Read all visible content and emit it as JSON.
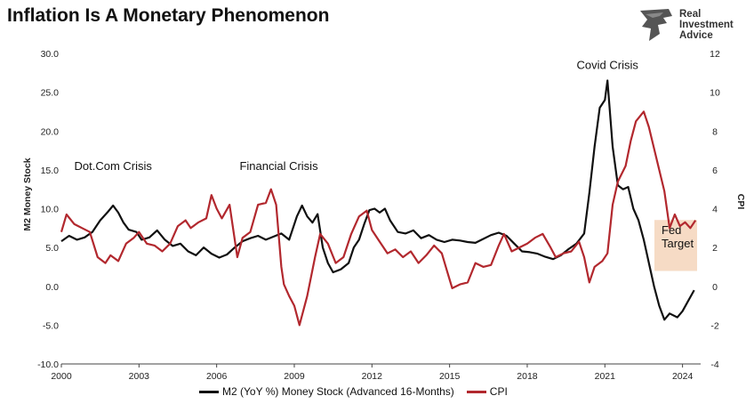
{
  "chart_data": {
    "type": "line",
    "title": "Inflation Is A Monetary Phenomenon",
    "ylabel_left": "M2 Money Stock",
    "ylabel_right": "CPI",
    "ylim_left": [
      -10,
      30
    ],
    "ylim_right": [
      -4,
      12
    ],
    "xlim": [
      2000,
      2024.7
    ],
    "x_ticks": [
      "2000",
      "2003",
      "2006",
      "2009",
      "2012",
      "2015",
      "2018",
      "2021",
      "2024"
    ],
    "y_left_ticks": [
      "30.0",
      "25.0",
      "20.0",
      "15.0",
      "10.0",
      "5.0",
      "0.0",
      "-5.0",
      "-10.0"
    ],
    "y_right_ticks": [
      "12",
      "10",
      "8",
      "6",
      "4",
      "2",
      "0",
      "-2",
      "-4"
    ],
    "grid": false,
    "legend_position": "bottom",
    "series": [
      {
        "name": "M2 (YoY %) Money Stock (Advanced 16-Months)",
        "axis": "left",
        "color": "#111111",
        "points": [
          [
            2000.0,
            5.8
          ],
          [
            2000.3,
            6.5
          ],
          [
            2000.6,
            6.0
          ],
          [
            2000.9,
            6.3
          ],
          [
            2001.2,
            7.0
          ],
          [
            2001.5,
            8.5
          ],
          [
            2001.8,
            9.6
          ],
          [
            2002.0,
            10.4
          ],
          [
            2002.2,
            9.5
          ],
          [
            2002.4,
            8.2
          ],
          [
            2002.6,
            7.3
          ],
          [
            2002.9,
            7.0
          ],
          [
            2003.1,
            6.0
          ],
          [
            2003.4,
            6.3
          ],
          [
            2003.7,
            7.2
          ],
          [
            2004.0,
            6.0
          ],
          [
            2004.3,
            5.2
          ],
          [
            2004.6,
            5.5
          ],
          [
            2004.9,
            4.5
          ],
          [
            2005.2,
            4.0
          ],
          [
            2005.5,
            5.0
          ],
          [
            2005.8,
            4.2
          ],
          [
            2006.1,
            3.7
          ],
          [
            2006.4,
            4.1
          ],
          [
            2006.7,
            5.0
          ],
          [
            2007.0,
            5.8
          ],
          [
            2007.3,
            6.2
          ],
          [
            2007.6,
            6.5
          ],
          [
            2007.9,
            6.0
          ],
          [
            2008.2,
            6.4
          ],
          [
            2008.5,
            6.8
          ],
          [
            2008.8,
            6.0
          ],
          [
            2009.1,
            9.0
          ],
          [
            2009.3,
            10.4
          ],
          [
            2009.5,
            9.0
          ],
          [
            2009.7,
            8.2
          ],
          [
            2009.9,
            9.3
          ],
          [
            2010.1,
            5.0
          ],
          [
            2010.3,
            3.0
          ],
          [
            2010.5,
            1.8
          ],
          [
            2010.8,
            2.2
          ],
          [
            2011.1,
            3.0
          ],
          [
            2011.3,
            5.0
          ],
          [
            2011.5,
            6.0
          ],
          [
            2011.7,
            8.0
          ],
          [
            2011.9,
            9.8
          ],
          [
            2012.1,
            10.0
          ],
          [
            2012.3,
            9.5
          ],
          [
            2012.5,
            10.0
          ],
          [
            2012.7,
            8.5
          ],
          [
            2013.0,
            7.0
          ],
          [
            2013.3,
            6.8
          ],
          [
            2013.6,
            7.2
          ],
          [
            2013.9,
            6.2
          ],
          [
            2014.2,
            6.6
          ],
          [
            2014.5,
            6.0
          ],
          [
            2014.8,
            5.7
          ],
          [
            2015.1,
            6.0
          ],
          [
            2015.4,
            5.9
          ],
          [
            2015.7,
            5.7
          ],
          [
            2016.0,
            5.6
          ],
          [
            2016.3,
            6.1
          ],
          [
            2016.6,
            6.6
          ],
          [
            2016.9,
            6.9
          ],
          [
            2017.2,
            6.5
          ],
          [
            2017.5,
            5.5
          ],
          [
            2017.8,
            4.5
          ],
          [
            2018.1,
            4.4
          ],
          [
            2018.4,
            4.2
          ],
          [
            2018.7,
            3.8
          ],
          [
            2019.0,
            3.5
          ],
          [
            2019.3,
            4.0
          ],
          [
            2019.6,
            4.8
          ],
          [
            2019.9,
            5.5
          ],
          [
            2020.2,
            6.8
          ],
          [
            2020.4,
            12.0
          ],
          [
            2020.6,
            18.0
          ],
          [
            2020.8,
            23.0
          ],
          [
            2021.0,
            24.0
          ],
          [
            2021.1,
            26.5
          ],
          [
            2021.3,
            18.0
          ],
          [
            2021.5,
            13.0
          ],
          [
            2021.7,
            12.5
          ],
          [
            2021.9,
            12.8
          ],
          [
            2022.1,
            10.0
          ],
          [
            2022.3,
            8.5
          ],
          [
            2022.5,
            6.0
          ],
          [
            2022.7,
            3.0
          ],
          [
            2022.9,
            0.0
          ],
          [
            2023.1,
            -2.5
          ],
          [
            2023.3,
            -4.3
          ],
          [
            2023.5,
            -3.5
          ],
          [
            2023.8,
            -4.0
          ],
          [
            2024.0,
            -3.2
          ],
          [
            2024.2,
            -2.0
          ],
          [
            2024.45,
            -0.5
          ]
        ]
      },
      {
        "name": "CPI",
        "axis": "right",
        "color": "#b2282e",
        "points": [
          [
            2000.0,
            2.8
          ],
          [
            2000.2,
            3.7
          ],
          [
            2000.5,
            3.2
          ],
          [
            2000.8,
            3.0
          ],
          [
            2001.1,
            2.8
          ],
          [
            2001.4,
            1.5
          ],
          [
            2001.7,
            1.2
          ],
          [
            2001.9,
            1.6
          ],
          [
            2002.2,
            1.3
          ],
          [
            2002.5,
            2.2
          ],
          [
            2002.8,
            2.5
          ],
          [
            2003.0,
            2.8
          ],
          [
            2003.3,
            2.2
          ],
          [
            2003.6,
            2.1
          ],
          [
            2003.9,
            1.8
          ],
          [
            2004.2,
            2.2
          ],
          [
            2004.5,
            3.1
          ],
          [
            2004.8,
            3.4
          ],
          [
            2005.0,
            3.0
          ],
          [
            2005.3,
            3.3
          ],
          [
            2005.6,
            3.5
          ],
          [
            2005.8,
            4.7
          ],
          [
            2006.0,
            4.0
          ],
          [
            2006.2,
            3.5
          ],
          [
            2006.5,
            4.2
          ],
          [
            2006.8,
            1.5
          ],
          [
            2007.0,
            2.5
          ],
          [
            2007.3,
            2.8
          ],
          [
            2007.6,
            4.2
          ],
          [
            2007.9,
            4.3
          ],
          [
            2008.1,
            5.0
          ],
          [
            2008.3,
            4.2
          ],
          [
            2008.5,
            1.0
          ],
          [
            2008.6,
            0.1
          ],
          [
            2008.8,
            -0.5
          ],
          [
            2009.0,
            -1.0
          ],
          [
            2009.2,
            -2.0
          ],
          [
            2009.5,
            -0.5
          ],
          [
            2009.8,
            1.5
          ],
          [
            2010.0,
            2.7
          ],
          [
            2010.3,
            2.2
          ],
          [
            2010.6,
            1.2
          ],
          [
            2010.9,
            1.5
          ],
          [
            2011.2,
            2.7
          ],
          [
            2011.5,
            3.6
          ],
          [
            2011.8,
            3.9
          ],
          [
            2012.0,
            2.9
          ],
          [
            2012.3,
            2.3
          ],
          [
            2012.6,
            1.7
          ],
          [
            2012.9,
            1.9
          ],
          [
            2013.2,
            1.5
          ],
          [
            2013.5,
            1.8
          ],
          [
            2013.8,
            1.2
          ],
          [
            2014.1,
            1.6
          ],
          [
            2014.4,
            2.1
          ],
          [
            2014.7,
            1.7
          ],
          [
            2014.9,
            0.8
          ],
          [
            2015.1,
            -0.1
          ],
          [
            2015.4,
            0.1
          ],
          [
            2015.7,
            0.2
          ],
          [
            2016.0,
            1.2
          ],
          [
            2016.3,
            1.0
          ],
          [
            2016.6,
            1.1
          ],
          [
            2016.9,
            2.1
          ],
          [
            2017.1,
            2.7
          ],
          [
            2017.4,
            1.8
          ],
          [
            2017.7,
            2.0
          ],
          [
            2018.0,
            2.2
          ],
          [
            2018.3,
            2.5
          ],
          [
            2018.6,
            2.7
          ],
          [
            2018.9,
            2.0
          ],
          [
            2019.1,
            1.5
          ],
          [
            2019.4,
            1.7
          ],
          [
            2019.7,
            1.8
          ],
          [
            2020.0,
            2.3
          ],
          [
            2020.2,
            1.5
          ],
          [
            2020.4,
            0.2
          ],
          [
            2020.6,
            1.0
          ],
          [
            2020.9,
            1.3
          ],
          [
            2021.1,
            1.7
          ],
          [
            2021.3,
            4.2
          ],
          [
            2021.5,
            5.4
          ],
          [
            2021.8,
            6.2
          ],
          [
            2022.0,
            7.5
          ],
          [
            2022.2,
            8.5
          ],
          [
            2022.5,
            9.0
          ],
          [
            2022.7,
            8.2
          ],
          [
            2022.9,
            7.1
          ],
          [
            2023.1,
            6.0
          ],
          [
            2023.3,
            4.9
          ],
          [
            2023.5,
            3.0
          ],
          [
            2023.7,
            3.7
          ],
          [
            2023.9,
            3.1
          ],
          [
            2024.1,
            3.3
          ],
          [
            2024.3,
            3.0
          ],
          [
            2024.5,
            3.4
          ]
        ]
      }
    ],
    "annotations": [
      {
        "text": "Dot.Com Crisis",
        "x": 2002.0,
        "y": 15.0,
        "axis": "left"
      },
      {
        "text": "Financial Crisis",
        "x": 2008.4,
        "y": 15.0,
        "axis": "left"
      },
      {
        "text": "Covid Crisis",
        "x": 2021.1,
        "y": 28.0,
        "axis": "left"
      }
    ],
    "target_band": {
      "label_line1": "Fed",
      "label_line2": "Target",
      "from": 1.8,
      "to": 2.5,
      "axis": "right",
      "color": "#f6dbc5"
    }
  },
  "logo": {
    "line1": "Real",
    "line2": "Investment",
    "line3": "Advice"
  },
  "colors": {
    "m2": "#111111",
    "cpi": "#b2282e",
    "band": "#f6dbc5"
  }
}
